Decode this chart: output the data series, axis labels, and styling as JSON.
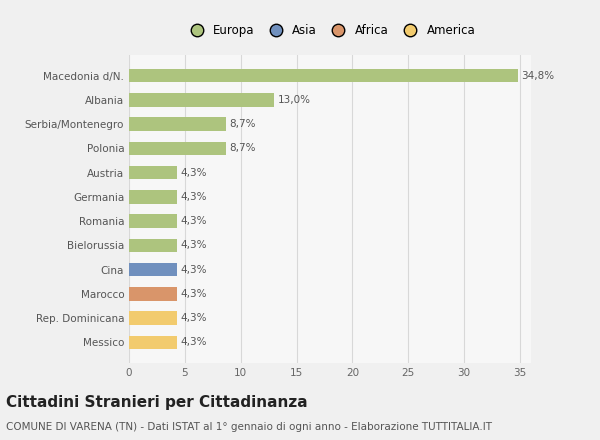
{
  "categories": [
    "Macedonia d/N.",
    "Albania",
    "Serbia/Montenegro",
    "Polonia",
    "Austria",
    "Germania",
    "Romania",
    "Bielorussia",
    "Cina",
    "Marocco",
    "Rep. Dominicana",
    "Messico"
  ],
  "values": [
    34.8,
    13.0,
    8.7,
    8.7,
    4.3,
    4.3,
    4.3,
    4.3,
    4.3,
    4.3,
    4.3,
    4.3
  ],
  "labels": [
    "34,8%",
    "13,0%",
    "8,7%",
    "8,7%",
    "4,3%",
    "4,3%",
    "4,3%",
    "4,3%",
    "4,3%",
    "4,3%",
    "4,3%",
    "4,3%"
  ],
  "bar_colors": [
    "#adc47e",
    "#adc47e",
    "#adc47e",
    "#adc47e",
    "#adc47e",
    "#adc47e",
    "#adc47e",
    "#adc47e",
    "#7090be",
    "#d9956a",
    "#f2cb6e",
    "#f2cb6e"
  ],
  "legend_labels": [
    "Europa",
    "Asia",
    "Africa",
    "America"
  ],
  "legend_colors": [
    "#adc47e",
    "#7090be",
    "#d9956a",
    "#f2cb6e"
  ],
  "xlim": [
    0,
    36
  ],
  "xticks": [
    0,
    5,
    10,
    15,
    20,
    25,
    30,
    35
  ],
  "title": "Cittadini Stranieri per Cittadinanza",
  "subtitle": "COMUNE DI VARENA (TN) - Dati ISTAT al 1° gennaio di ogni anno - Elaborazione TUTTITALIA.IT",
  "background_color": "#f0f0f0",
  "plot_bg_color": "#f7f7f7",
  "bar_height": 0.55,
  "title_fontsize": 11,
  "subtitle_fontsize": 7.5,
  "label_fontsize": 7.5,
  "tick_fontsize": 7.5,
  "legend_fontsize": 8.5,
  "grid_color": "#d8d8d8"
}
